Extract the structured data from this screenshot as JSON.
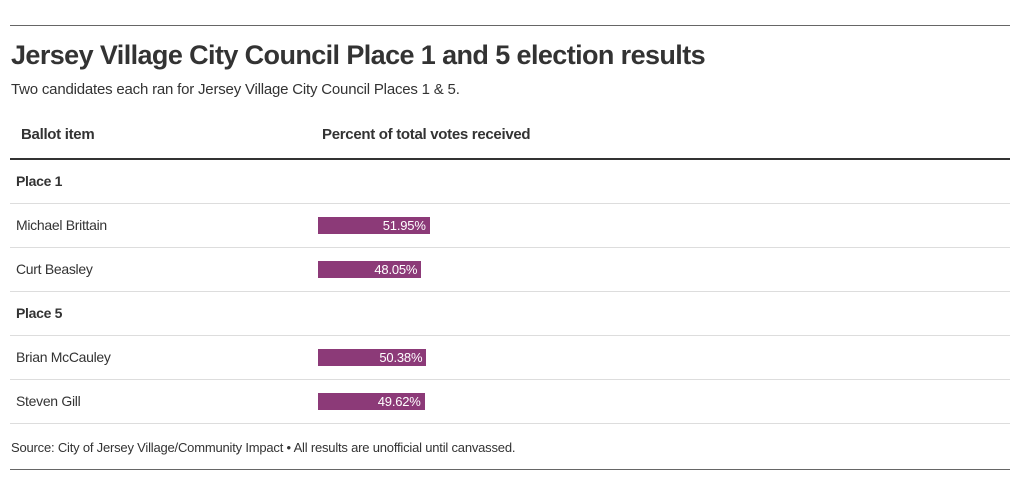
{
  "header": {
    "title": "Jersey Village City Council Place 1 and 5 election results",
    "subtitle": "Two candidates each ran for Jersey Village City Council Places 1 & 5."
  },
  "table": {
    "columns": [
      "Ballot item",
      "Percent of total votes received"
    ]
  },
  "footer": {
    "source": "Source: City of Jersey Village/Community Impact • All results are unofficial until canvassed."
  },
  "colors": {
    "bar": "#8c3a78",
    "bar_text": "#ffffff"
  },
  "chart_data": {
    "type": "bar",
    "title": "Jersey Village City Council Place 1 and 5 election results",
    "subtitle": "Two candidates each ran for Jersey Village City Council Places 1 & 5.",
    "xlabel": "Percent of total votes received",
    "ylabel": "Ballot item",
    "xlim": [
      0,
      100
    ],
    "groups": [
      {
        "name": "Place 1",
        "items": [
          {
            "label": "Michael Brittain",
            "value": 51.95,
            "display": "51.95%"
          },
          {
            "label": "Curt Beasley",
            "value": 48.05,
            "display": "48.05%"
          }
        ]
      },
      {
        "name": "Place 5",
        "items": [
          {
            "label": "Brian McCauley",
            "value": 50.38,
            "display": "50.38%"
          },
          {
            "label": "Steven Gill",
            "value": 49.62,
            "display": "49.62%"
          }
        ]
      }
    ]
  }
}
